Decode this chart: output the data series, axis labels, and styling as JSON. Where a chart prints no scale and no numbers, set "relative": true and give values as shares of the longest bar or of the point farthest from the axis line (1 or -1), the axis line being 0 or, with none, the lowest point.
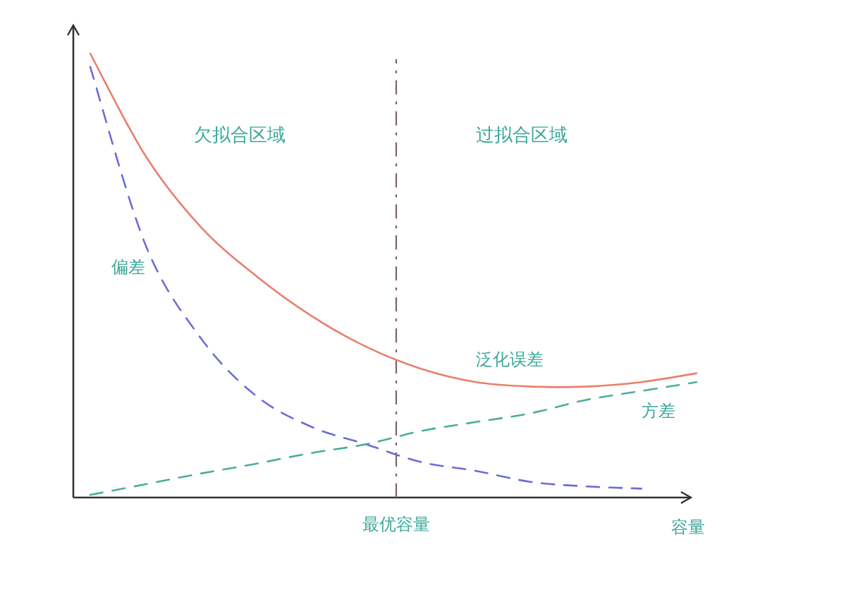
{
  "chart_data": {
    "type": "line",
    "relative": true,
    "categories": [
      null,
      null,
      null,
      null,
      null,
      null,
      null,
      null,
      null,
      null,
      null,
      null
    ],
    "xlabel": "容量",
    "series": [
      {
        "name": "泛化误差",
        "color": "#e8806c",
        "line_style": "solid",
        "values": [
          1,
          0.77,
          0.61,
          0.5,
          0.41,
          0.34,
          0.29,
          0.26,
          0.25,
          0.25,
          0.26,
          0.28
        ]
      },
      {
        "name": "偏差",
        "color": "#6c6cd8",
        "line_style": "dashed",
        "values": [
          0.97,
          0.57,
          0.36,
          0.23,
          0.16,
          0.12,
          0.08,
          0.06,
          0.035,
          0.025,
          0.02,
          null
        ]
      },
      {
        "name": "方差",
        "color": "#4aae9c",
        "line_style": "dashed",
        "values": [
          0.006,
          0.03,
          0.054,
          0.076,
          0.1,
          0.12,
          0.15,
          0.17,
          0.19,
          0.22,
          0.24,
          0.26
        ]
      }
    ],
    "annotations": [
      "欠拟合区域",
      "过拟合区域",
      "最优容量"
    ]
  }
}
